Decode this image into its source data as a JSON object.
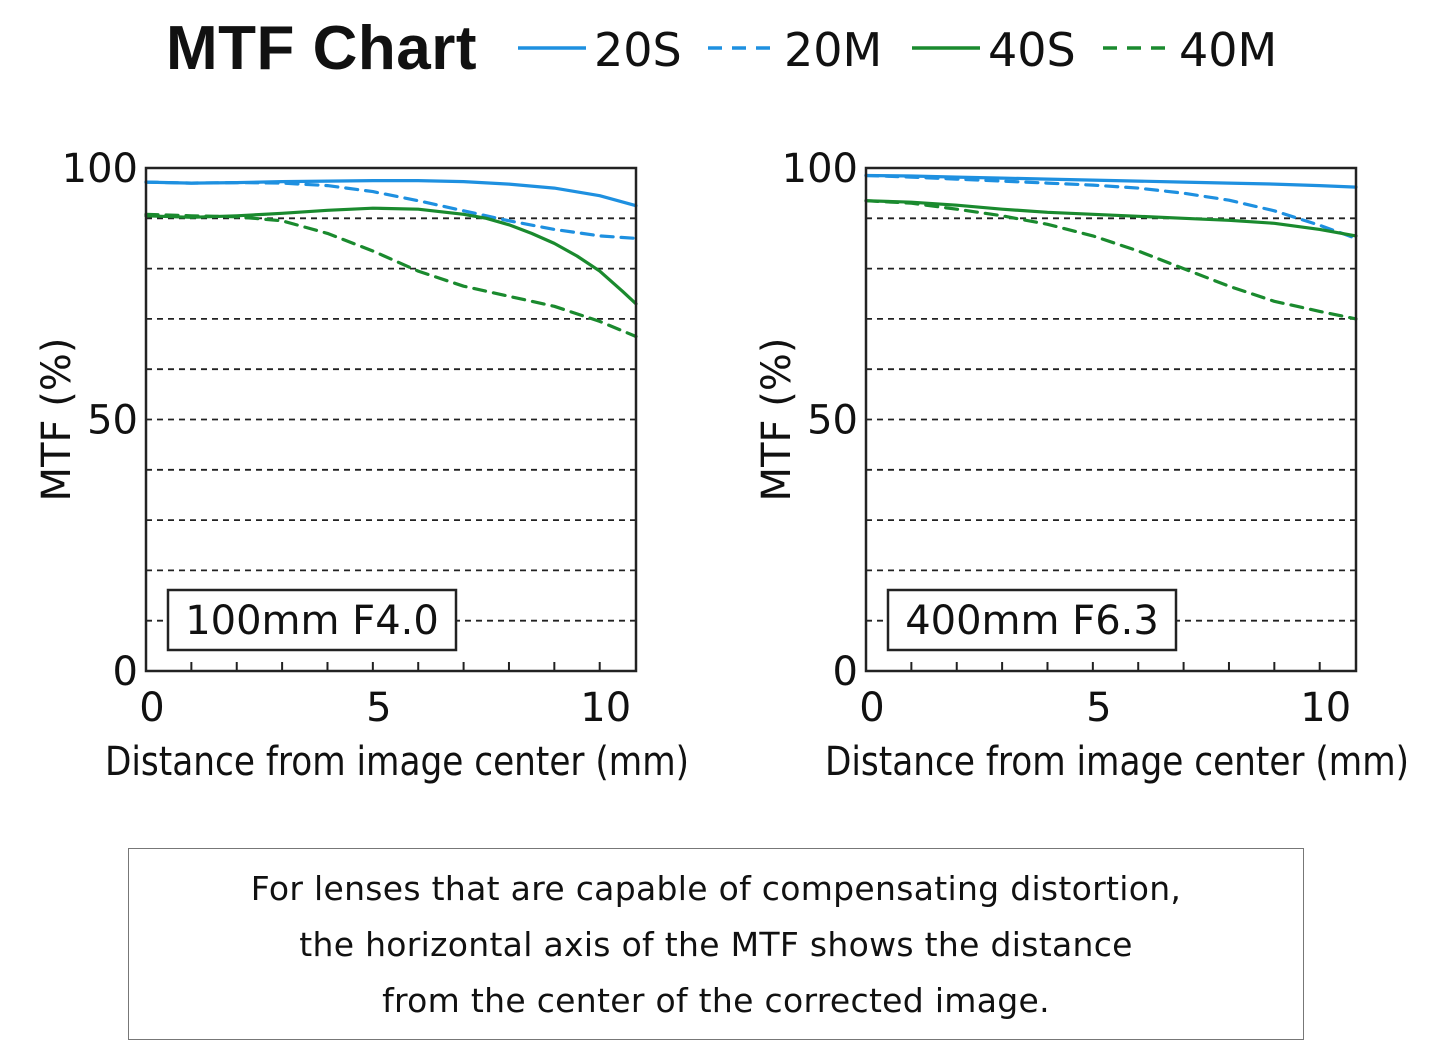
{
  "title": "MTF Chart",
  "legend": [
    {
      "label": "20S",
      "color": "#1e90e0",
      "dashed": false
    },
    {
      "label": "20M",
      "color": "#1e90e0",
      "dashed": true
    },
    {
      "label": "40S",
      "color": "#1a8a2e",
      "dashed": false
    },
    {
      "label": "40M",
      "color": "#1a8a2e",
      "dashed": true
    }
  ],
  "note": {
    "lines": [
      "For lenses that are capable of compensating distortion,",
      "the horizontal axis of the MTF shows the distance",
      "from the center of the corrected image."
    ]
  },
  "chart_data": [
    {
      "type": "line",
      "annotation": "100mm F4.0",
      "xlabel": "Distance from image center (mm)",
      "ylabel": "MTF (%)",
      "xlim": [
        0,
        10.8
      ],
      "ylim": [
        0,
        100
      ],
      "x_ticks": [
        "0",
        "5",
        "10"
      ],
      "y_ticks": [
        "0",
        "50",
        "100"
      ],
      "grid": "dashed horizontal every 10",
      "series": [
        {
          "name": "20S",
          "x": [
            0,
            1,
            2,
            3,
            4,
            5,
            6,
            7,
            8,
            9,
            10,
            10.8
          ],
          "y": [
            97.2,
            97.0,
            97.1,
            97.3,
            97.4,
            97.5,
            97.5,
            97.3,
            96.8,
            96.0,
            94.5,
            92.5
          ]
        },
        {
          "name": "20M",
          "x": [
            0,
            1,
            2,
            3,
            4,
            5,
            6,
            7,
            8,
            9,
            10,
            10.8
          ],
          "y": [
            97.2,
            97.0,
            97.1,
            97.0,
            96.5,
            95.3,
            93.5,
            91.5,
            89.5,
            87.8,
            86.5,
            86.0
          ]
        },
        {
          "name": "40S",
          "x": [
            0,
            1,
            2,
            3,
            4,
            5,
            6,
            7,
            7.5,
            8,
            8.5,
            9,
            9.5,
            10,
            10.5,
            10.8
          ],
          "y": [
            90.5,
            90.2,
            90.5,
            91.0,
            91.6,
            92.0,
            91.8,
            90.8,
            90.0,
            88.7,
            87.0,
            85.0,
            82.5,
            79.5,
            75.5,
            73.0
          ]
        },
        {
          "name": "40M",
          "x": [
            0,
            1,
            2,
            3,
            4,
            5,
            6,
            7,
            8,
            9,
            10,
            10.8
          ],
          "y": [
            90.8,
            90.5,
            90.3,
            89.5,
            87.0,
            83.5,
            79.5,
            76.5,
            74.5,
            72.5,
            69.5,
            66.5
          ]
        }
      ]
    },
    {
      "type": "line",
      "annotation": "400mm F6.3",
      "xlabel": "Distance from image center (mm)",
      "ylabel": "MTF (%)",
      "xlim": [
        0,
        10.8
      ],
      "ylim": [
        0,
        100
      ],
      "x_ticks": [
        "0",
        "5",
        "10"
      ],
      "y_ticks": [
        "0",
        "50",
        "100"
      ],
      "grid": "dashed horizontal every 10",
      "series": [
        {
          "name": "20S",
          "x": [
            0,
            1,
            2,
            3,
            4,
            5,
            6,
            7,
            8,
            9,
            10,
            10.8
          ],
          "y": [
            98.5,
            98.4,
            98.2,
            98.0,
            97.8,
            97.6,
            97.4,
            97.2,
            97.0,
            96.8,
            96.5,
            96.2
          ]
        },
        {
          "name": "20M",
          "x": [
            0,
            1,
            2,
            3,
            4,
            5,
            6,
            7,
            8,
            9,
            10,
            10.8
          ],
          "y": [
            98.5,
            98.2,
            97.8,
            97.4,
            97.0,
            96.6,
            96.0,
            95.0,
            93.6,
            91.5,
            88.6,
            86.0
          ]
        },
        {
          "name": "40S",
          "x": [
            0,
            1,
            2,
            3,
            4,
            5,
            6,
            7,
            8,
            9,
            10,
            10.8
          ],
          "y": [
            93.5,
            93.2,
            92.6,
            91.8,
            91.2,
            90.8,
            90.4,
            90.0,
            89.6,
            89.0,
            87.8,
            86.5
          ]
        },
        {
          "name": "40M",
          "x": [
            0,
            1,
            2,
            3,
            4,
            5,
            6,
            7,
            8,
            9,
            10,
            10.8
          ],
          "y": [
            93.5,
            93.0,
            91.8,
            90.5,
            88.8,
            86.5,
            83.5,
            80.0,
            76.5,
            73.5,
            71.5,
            70.0
          ]
        }
      ]
    }
  ]
}
